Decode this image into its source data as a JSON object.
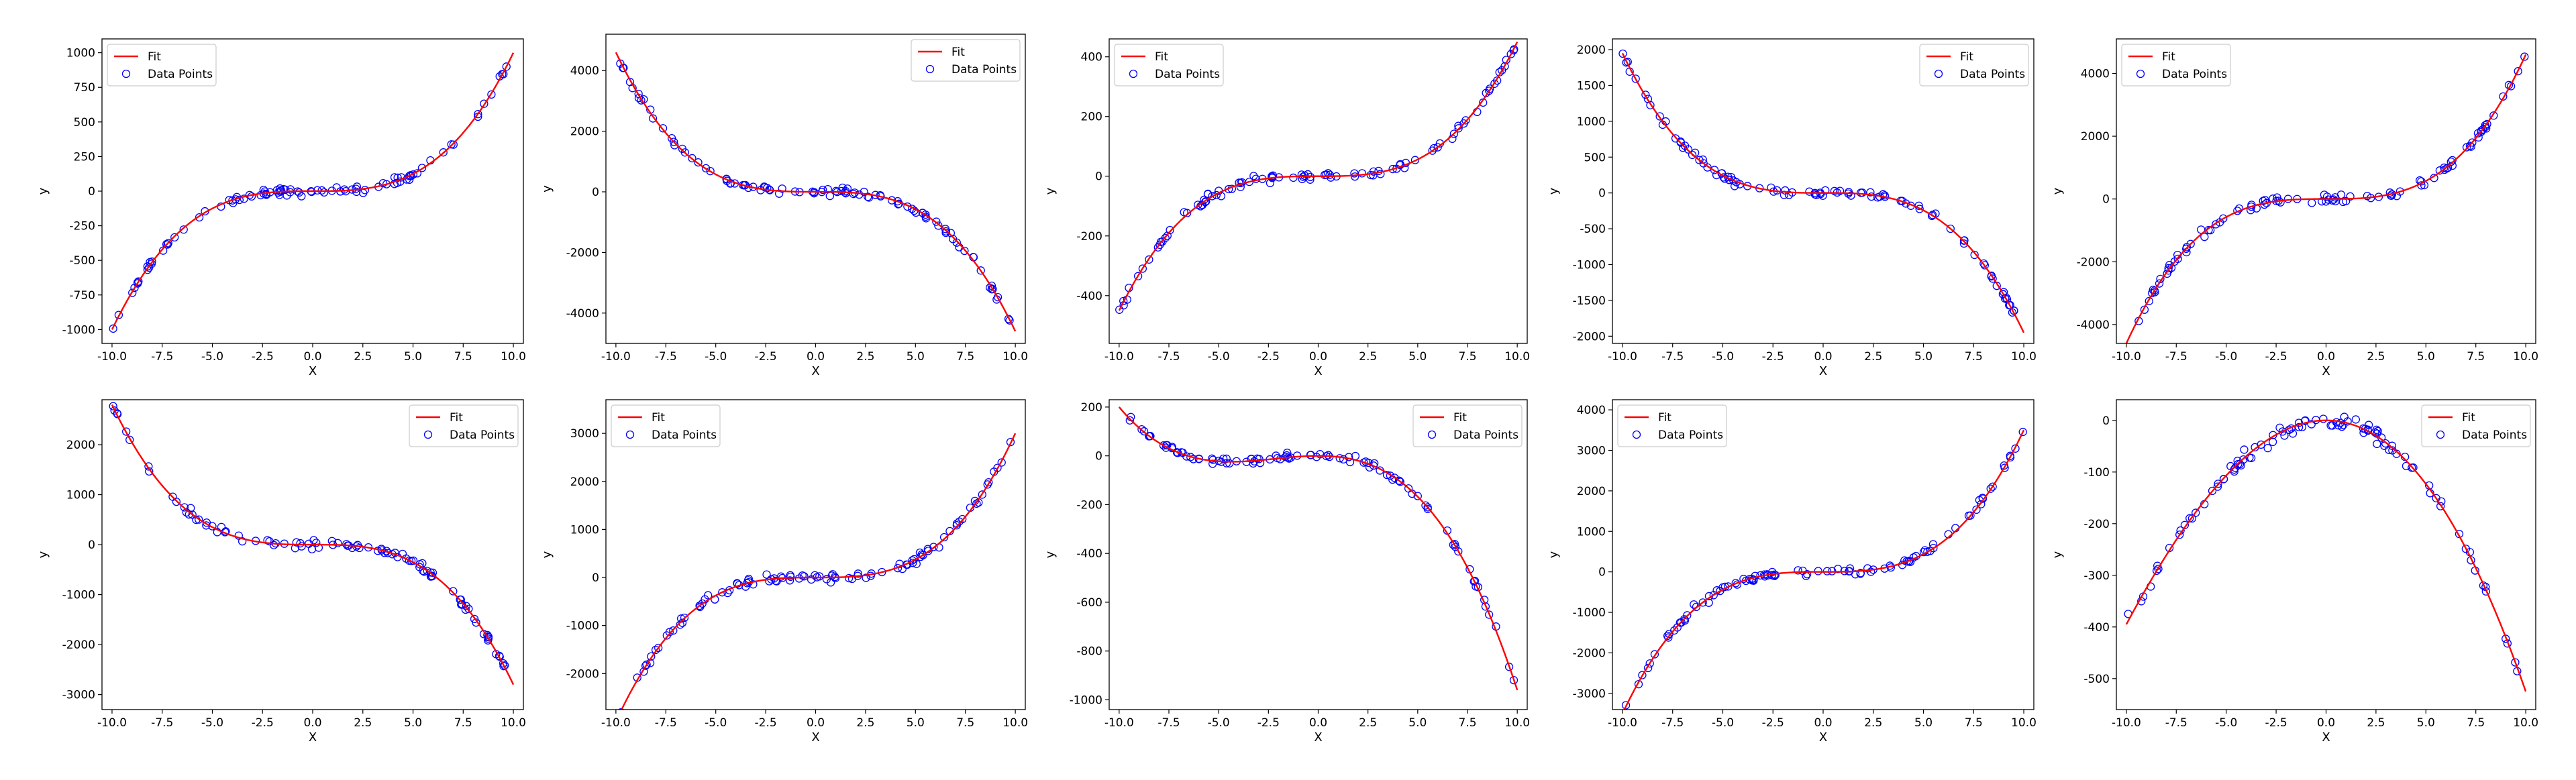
{
  "figure": {
    "name": "polynomial-fit-grid"
  },
  "colors": {
    "fit": "#ff0000",
    "points": "#0000ff",
    "axes": "#000000",
    "background": "#ffffff"
  },
  "legend_labels": {
    "fit": "Fit",
    "points": "Data Points"
  },
  "chart_data": [
    {
      "type": "scatter",
      "fit_type": "cubic",
      "xlabel": "X",
      "ylabel": "y",
      "title": "",
      "legend_position": "top-left",
      "xlim": [
        -10.5,
        10.5
      ],
      "ylim": [
        -1100,
        1100
      ],
      "xticks": [
        -10.0,
        -7.5,
        -5.0,
        -2.5,
        0.0,
        2.5,
        5.0,
        7.5,
        10.0
      ],
      "yticks": [
        -1000,
        -750,
        -500,
        -250,
        0,
        250,
        500,
        750,
        1000
      ],
      "fit": {
        "a3": 1.0,
        "a2": 0.0,
        "a1": 0.0,
        "a0": 0.0
      },
      "noise": 20,
      "n_points": 100,
      "seed": 11
    },
    {
      "type": "scatter",
      "fit_type": "cubic",
      "xlabel": "X",
      "ylabel": "y",
      "title": "",
      "legend_position": "top-right",
      "xlim": [
        -10.5,
        10.5
      ],
      "ylim": [
        -5000,
        5200
      ],
      "xticks": [
        -10.0,
        -7.5,
        -5.0,
        -2.5,
        0.0,
        2.5,
        5.0,
        7.5,
        10.0
      ],
      "yticks": [
        -4000,
        -2000,
        0,
        2000,
        4000
      ],
      "fit": {
        "a3": -4.6,
        "a2": 0.0,
        "a1": 0.0,
        "a0": 0.0
      },
      "noise": 100,
      "n_points": 100,
      "seed": 23
    },
    {
      "type": "scatter",
      "fit_type": "cubic",
      "xlabel": "X",
      "ylabel": "y",
      "title": "",
      "legend_position": "top-left",
      "xlim": [
        -10.5,
        10.5
      ],
      "ylim": [
        -560,
        460
      ],
      "xticks": [
        -10.0,
        -7.5,
        -5.0,
        -2.5,
        0.0,
        2.5,
        5.0,
        7.5,
        10.0
      ],
      "yticks": [
        -400,
        -200,
        0,
        200,
        400
      ],
      "fit": {
        "a3": 0.45,
        "a2": 0.0,
        "a1": 0.0,
        "a0": 0.0
      },
      "noise": 12,
      "n_points": 100,
      "seed": 37
    },
    {
      "type": "scatter",
      "fit_type": "cubic",
      "xlabel": "X",
      "ylabel": "y",
      "title": "",
      "legend_position": "top-right",
      "xlim": [
        -10.5,
        10.5
      ],
      "ylim": [
        -2100,
        2150
      ],
      "xticks": [
        -10.0,
        -7.5,
        -5.0,
        -2.5,
        0.0,
        2.5,
        5.0,
        7.5,
        10.0
      ],
      "yticks": [
        -2000,
        -1500,
        -1000,
        -500,
        0,
        500,
        1000,
        1500,
        2000
      ],
      "fit": {
        "a3": -1.95,
        "a2": 0.0,
        "a1": 0.0,
        "a0": 0.0
      },
      "noise": 40,
      "n_points": 100,
      "seed": 41
    },
    {
      "type": "scatter",
      "fit_type": "cubic",
      "xlabel": "X",
      "ylabel": "y",
      "title": "",
      "legend_position": "top-left",
      "xlim": [
        -10.5,
        10.5
      ],
      "ylim": [
        -4600,
        5100
      ],
      "xticks": [
        -10.0,
        -7.5,
        -5.0,
        -2.5,
        0.0,
        2.5,
        5.0,
        7.5,
        10.0
      ],
      "yticks": [
        -4000,
        -2000,
        0,
        2000,
        4000
      ],
      "fit": {
        "a3": 4.6,
        "a2": 0.0,
        "a1": 0.0,
        "a0": 0.0
      },
      "noise": 100,
      "n_points": 100,
      "seed": 53
    },
    {
      "type": "scatter",
      "fit_type": "cubic",
      "xlabel": "X",
      "ylabel": "y",
      "title": "",
      "legend_position": "top-right",
      "xlim": [
        -10.5,
        10.5
      ],
      "ylim": [
        -3300,
        2900
      ],
      "xticks": [
        -10.0,
        -7.5,
        -5.0,
        -2.5,
        0.0,
        2.5,
        5.0,
        7.5,
        10.0
      ],
      "yticks": [
        -3000,
        -2000,
        -1000,
        0,
        1000,
        2000
      ],
      "fit": {
        "a3": -2.8,
        "a2": 0.0,
        "a1": 0.0,
        "a0": 0.0
      },
      "noise": 70,
      "n_points": 100,
      "seed": 61
    },
    {
      "type": "scatter",
      "fit_type": "cubic",
      "xlabel": "X",
      "ylabel": "y",
      "title": "",
      "legend_position": "top-left",
      "xlim": [
        -10.5,
        10.5
      ],
      "ylim": [
        -2750,
        3700
      ],
      "xticks": [
        -10.0,
        -7.5,
        -5.0,
        -2.5,
        0.0,
        2.5,
        5.0,
        7.5,
        10.0
      ],
      "yticks": [
        -2000,
        -1000,
        0,
        1000,
        2000,
        3000
      ],
      "fit": {
        "a3": 3.0,
        "a2": 0.0,
        "a1": 0.0,
        "a0": 0.0
      },
      "noise": 70,
      "n_points": 100,
      "seed": 71
    },
    {
      "type": "scatter",
      "fit_type": "cubic",
      "xlabel": "X",
      "ylabel": "y",
      "title": "",
      "legend_position": "top-right",
      "xlim": [
        -10.5,
        10.5
      ],
      "ylim": [
        -1040,
        230
      ],
      "xticks": [
        -10.0,
        -7.5,
        -5.0,
        -2.5,
        0.0,
        2.5,
        5.0,
        7.5,
        10.0
      ],
      "yticks": [
        -1000,
        -800,
        -600,
        -400,
        -200,
        0,
        200
      ],
      "fit": {
        "a3": -0.58,
        "a2": -3.8,
        "a1": 0.0,
        "a0": 0.0
      },
      "noise": 12,
      "n_points": 100,
      "seed": 83
    },
    {
      "type": "scatter",
      "fit_type": "cubic",
      "xlabel": "X",
      "ylabel": "y",
      "title": "",
      "legend_position": "top-left",
      "xlim": [
        -10.5,
        10.5
      ],
      "ylim": [
        -3400,
        4250
      ],
      "xticks": [
        -10.0,
        -7.5,
        -5.0,
        -2.5,
        0.0,
        2.5,
        5.0,
        7.5,
        10.0
      ],
      "yticks": [
        -3000,
        -2000,
        -1000,
        0,
        1000,
        2000,
        3000,
        4000
      ],
      "fit": {
        "a3": 3.5,
        "a2": 0.0,
        "a1": 0.0,
        "a0": 0.0
      },
      "noise": 80,
      "n_points": 100,
      "seed": 97
    },
    {
      "type": "scatter",
      "fit_type": "cubic",
      "xlabel": "X",
      "ylabel": "y",
      "title": "",
      "legend_position": "top-right",
      "xlim": [
        -10.5,
        10.5
      ],
      "ylim": [
        -560,
        40
      ],
      "xticks": [
        -10.0,
        -7.5,
        -5.0,
        -2.5,
        0.0,
        2.5,
        5.0,
        7.5,
        10.0
      ],
      "yticks": [
        -500,
        -400,
        -300,
        -200,
        -100,
        0
      ],
      "fit": {
        "a3": -0.065,
        "a2": -4.6,
        "a1": 0.0,
        "a0": 0.0
      },
      "noise": 10,
      "n_points": 100,
      "seed": 101
    }
  ]
}
